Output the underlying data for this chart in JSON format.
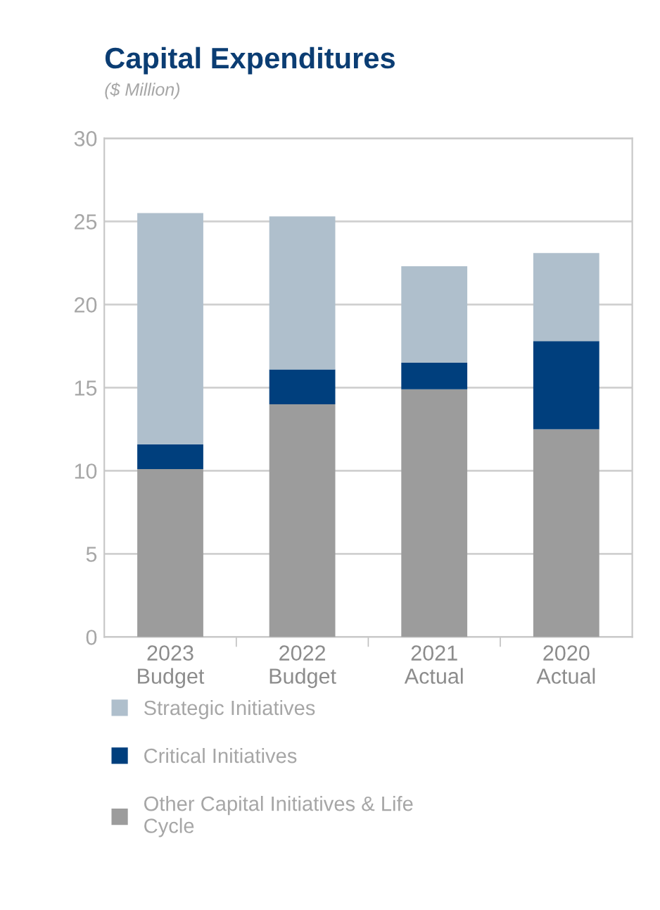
{
  "chart_data": {
    "type": "bar",
    "title": "Capital Expenditures",
    "subtitle": "($ Million)",
    "categories": [
      "2023\nBudget",
      "2022\nBudget",
      "2021\nActual",
      "2020\nActual"
    ],
    "stacked": true,
    "series": [
      {
        "name": "Other Capital Initiatives & Life\nCycle",
        "color": "#9c9c9c",
        "values": [
          10.1,
          14.0,
          14.9,
          12.5
        ]
      },
      {
        "name": "Critical Initiatives",
        "color": "#003f7d",
        "values": [
          1.5,
          2.1,
          1.6,
          5.3
        ]
      },
      {
        "name": "Strategic Initiatives",
        "color": "#afbfcc",
        "values": [
          13.9,
          9.2,
          5.8,
          5.3
        ]
      }
    ],
    "ylim": [
      0,
      30
    ],
    "yticks": [
      0,
      5,
      10,
      15,
      20,
      25,
      30
    ],
    "grid": "y",
    "legend": "bottom"
  }
}
